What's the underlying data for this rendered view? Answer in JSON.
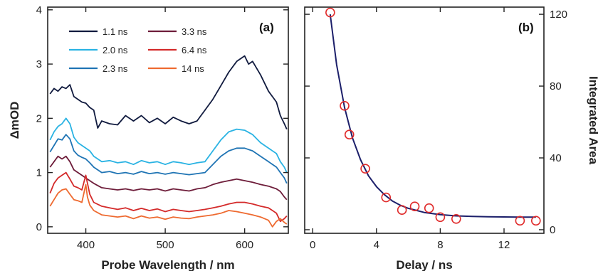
{
  "chart_data": [
    {
      "type": "line",
      "panel_label": "(a)",
      "xlabel": "Probe Wavelength / nm",
      "ylabel": "ΔmOD",
      "xlim": [
        352,
        655
      ],
      "ylim": [
        -0.12,
        4.05
      ],
      "xticks": [
        400,
        500,
        600
      ],
      "yticks": [
        0,
        1,
        2,
        3,
        4
      ],
      "grid": false,
      "legend_position": "top-left",
      "series": [
        {
          "name": "1.1 ns",
          "color": "#101a3e",
          "x": [
            355,
            360,
            365,
            370,
            375,
            380,
            385,
            390,
            395,
            400,
            405,
            410,
            415,
            420,
            430,
            440,
            450,
            460,
            470,
            480,
            490,
            500,
            510,
            520,
            530,
            540,
            550,
            560,
            570,
            580,
            590,
            600,
            605,
            610,
            620,
            630,
            640,
            645,
            650,
            653
          ],
          "y": [
            2.45,
            2.55,
            2.5,
            2.58,
            2.55,
            2.62,
            2.4,
            2.35,
            2.3,
            2.28,
            2.2,
            2.15,
            1.82,
            1.95,
            1.9,
            1.88,
            2.05,
            1.95,
            2.05,
            1.92,
            2.0,
            1.9,
            2.02,
            1.95,
            1.9,
            1.95,
            2.15,
            2.35,
            2.6,
            2.85,
            3.05,
            3.15,
            3.0,
            3.05,
            2.8,
            2.5,
            2.3,
            2.05,
            1.9,
            1.8
          ]
        },
        {
          "name": "2.0 ns",
          "color": "#2ab3e3",
          "x": [
            355,
            360,
            365,
            370,
            375,
            380,
            385,
            390,
            395,
            400,
            405,
            410,
            420,
            430,
            440,
            450,
            460,
            470,
            480,
            490,
            500,
            510,
            520,
            530,
            540,
            550,
            560,
            570,
            580,
            590,
            600,
            610,
            620,
            630,
            640,
            645,
            650,
            653
          ],
          "y": [
            1.6,
            1.75,
            1.85,
            1.9,
            2.0,
            1.9,
            1.65,
            1.55,
            1.5,
            1.45,
            1.4,
            1.3,
            1.2,
            1.22,
            1.18,
            1.2,
            1.15,
            1.22,
            1.18,
            1.2,
            1.15,
            1.2,
            1.18,
            1.15,
            1.18,
            1.2,
            1.4,
            1.6,
            1.75,
            1.8,
            1.78,
            1.7,
            1.55,
            1.45,
            1.35,
            1.2,
            1.1,
            1.0
          ]
        },
        {
          "name": "2.3 ns",
          "color": "#1f74b4",
          "x": [
            355,
            360,
            365,
            370,
            375,
            380,
            385,
            390,
            395,
            400,
            405,
            410,
            420,
            430,
            440,
            450,
            460,
            470,
            480,
            490,
            500,
            510,
            520,
            530,
            540,
            550,
            560,
            570,
            580,
            590,
            600,
            610,
            620,
            630,
            640,
            645,
            650,
            653
          ],
          "y": [
            1.38,
            1.5,
            1.62,
            1.6,
            1.7,
            1.62,
            1.4,
            1.32,
            1.28,
            1.25,
            1.18,
            1.1,
            1.0,
            1.02,
            0.98,
            1.0,
            0.97,
            1.02,
            0.98,
            1.0,
            0.97,
            1.0,
            0.98,
            0.96,
            0.98,
            1.0,
            1.15,
            1.3,
            1.4,
            1.45,
            1.45,
            1.4,
            1.3,
            1.2,
            1.1,
            1.0,
            0.9,
            0.8
          ]
        },
        {
          "name": "3.3 ns",
          "color": "#6e1d3a",
          "x": [
            355,
            360,
            365,
            370,
            375,
            380,
            385,
            390,
            395,
            400,
            405,
            410,
            420,
            430,
            440,
            450,
            460,
            470,
            480,
            490,
            500,
            510,
            520,
            530,
            540,
            550,
            560,
            570,
            580,
            590,
            600,
            610,
            620,
            630,
            640,
            645,
            650,
            653
          ],
          "y": [
            1.1,
            1.2,
            1.3,
            1.25,
            1.3,
            1.2,
            1.05,
            1.0,
            0.95,
            0.9,
            0.85,
            0.8,
            0.72,
            0.7,
            0.68,
            0.7,
            0.67,
            0.7,
            0.68,
            0.7,
            0.66,
            0.7,
            0.68,
            0.66,
            0.7,
            0.72,
            0.78,
            0.82,
            0.85,
            0.88,
            0.85,
            0.82,
            0.78,
            0.75,
            0.7,
            0.65,
            0.55,
            0.5
          ]
        },
        {
          "name": "6.4 ns",
          "color": "#d42a2a",
          "x": [
            355,
            360,
            365,
            370,
            375,
            380,
            385,
            390,
            395,
            400,
            405,
            410,
            420,
            430,
            440,
            450,
            460,
            470,
            480,
            490,
            500,
            510,
            520,
            530,
            540,
            550,
            560,
            570,
            580,
            590,
            600,
            610,
            620,
            630,
            640,
            645,
            650,
            653
          ],
          "y": [
            0.62,
            0.8,
            0.9,
            0.95,
            1.0,
            0.88,
            0.75,
            0.72,
            0.68,
            0.95,
            0.6,
            0.45,
            0.38,
            0.35,
            0.32,
            0.35,
            0.3,
            0.34,
            0.3,
            0.33,
            0.28,
            0.32,
            0.3,
            0.28,
            0.3,
            0.32,
            0.35,
            0.38,
            0.42,
            0.45,
            0.45,
            0.42,
            0.38,
            0.35,
            0.25,
            0.1,
            0.15,
            0.2
          ]
        },
        {
          "name": "14 ns",
          "color": "#ee6a30",
          "x": [
            355,
            360,
            365,
            370,
            375,
            380,
            385,
            390,
            395,
            400,
            402,
            405,
            410,
            420,
            430,
            440,
            450,
            460,
            470,
            480,
            490,
            500,
            510,
            520,
            530,
            540,
            550,
            560,
            570,
            580,
            590,
            600,
            610,
            620,
            630,
            635,
            640,
            645,
            650,
            653
          ],
          "y": [
            0.38,
            0.5,
            0.62,
            0.68,
            0.7,
            0.6,
            0.5,
            0.48,
            0.45,
            0.78,
            0.55,
            0.4,
            0.3,
            0.22,
            0.2,
            0.18,
            0.2,
            0.15,
            0.2,
            0.16,
            0.18,
            0.14,
            0.18,
            0.16,
            0.15,
            0.18,
            0.2,
            0.22,
            0.25,
            0.3,
            0.28,
            0.25,
            0.22,
            0.18,
            0.12,
            0.0,
            0.1,
            0.15,
            0.08,
            0.05
          ]
        }
      ]
    },
    {
      "type": "scatter",
      "panel_label": "(b)",
      "xlabel": "Delay / ns",
      "ylabel": "Integrated Area",
      "y_axis_side": "right",
      "xlim": [
        -0.5,
        14.5
      ],
      "ylim": [
        -2,
        124
      ],
      "xticks": [
        0,
        4,
        8,
        12
      ],
      "yticks": [
        0,
        40,
        80,
        120
      ],
      "grid": false,
      "series": [
        {
          "kind": "points",
          "marker_color": "#e02b2b",
          "x": [
            1.1,
            2.0,
            2.3,
            3.3,
            4.6,
            5.6,
            6.4,
            7.3,
            8.0,
            9.0,
            13.0,
            14.0
          ],
          "y": [
            121,
            69,
            53,
            34,
            18,
            11,
            13,
            12,
            7,
            6,
            5,
            5
          ]
        },
        {
          "kind": "fit",
          "line_color": "#1c1f6a",
          "x": [
            1.1,
            1.5,
            2.0,
            2.5,
            3.0,
            3.5,
            4.0,
            4.5,
            5.0,
            5.5,
            6.0,
            7.0,
            8.0,
            9.0,
            10.0,
            11.0,
            12.0,
            13.0,
            14.0
          ],
          "y": [
            120,
            92,
            68,
            51,
            39,
            30,
            24,
            19.5,
            16,
            13.6,
            11.9,
            9.6,
            8.4,
            7.7,
            7.4,
            7.2,
            7.1,
            7.05,
            7.0
          ]
        }
      ]
    }
  ]
}
